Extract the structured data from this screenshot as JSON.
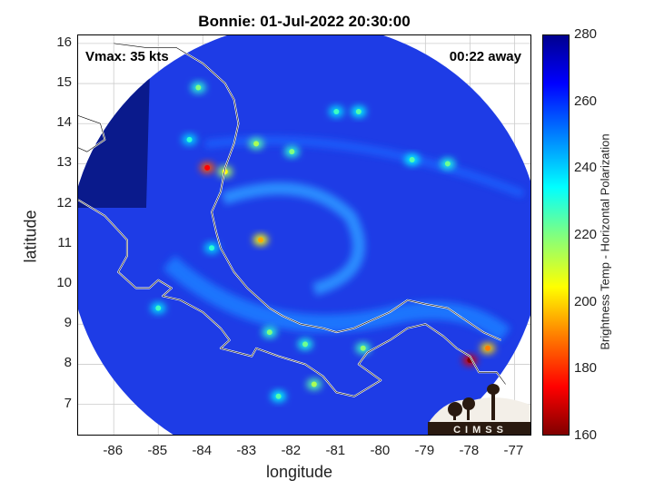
{
  "title": "Bonnie: 01-Jul-2022 20:30:00",
  "vmax_text": "Vmax: 35 kts",
  "away_text": "00:22 away",
  "logo_text": "CIMSS",
  "xlabel": "longitude",
  "ylabel": "latitude",
  "colorbar_label": "Brightness Temp - Horizontal Polarization",
  "colors": {
    "background_disk": "#1e3ce6",
    "dark_outer": "#0a1a8c",
    "coastline": "#ffffff",
    "grid": "#cccccc"
  },
  "map_data": {
    "type": "heatmap",
    "xlim": [
      -86.8,
      -76.6
    ],
    "ylim": [
      6.2,
      16.2
    ],
    "x_ticks": [
      -86,
      -85,
      -84,
      -83,
      -82,
      -81,
      -80,
      -79,
      -78,
      -77
    ],
    "y_ticks": [
      7,
      8,
      9,
      10,
      11,
      12,
      13,
      14,
      15,
      16
    ],
    "x_tick_labels": [
      "-86",
      "-85",
      "-84",
      "-83",
      "-82",
      "-81",
      "-80",
      "-79",
      "-78",
      "-77"
    ],
    "y_tick_labels": [
      "7",
      "8",
      "9",
      "10",
      "11",
      "12",
      "13",
      "14",
      "15",
      "16"
    ],
    "colorbar": {
      "range": [
        160,
        280
      ],
      "ticks": [
        160,
        180,
        200,
        220,
        240,
        260,
        280
      ],
      "tick_labels": [
        "160",
        "180",
        "200",
        "220",
        "240",
        "260",
        "280"
      ],
      "colormap": "jet"
    },
    "swath_center": [
      -81.7,
      10.9
    ],
    "swath_radius_deg": 5.3,
    "storm_center": [
      -82.7,
      11.1
    ],
    "hotspots": [
      {
        "lon": -83.9,
        "lat": 12.9,
        "tb": 185
      },
      {
        "lon": -82.7,
        "lat": 11.1,
        "tb": 205
      },
      {
        "lon": -78.0,
        "lat": 8.1,
        "tb": 170
      },
      {
        "lon": -84.1,
        "lat": 14.9,
        "tb": 230
      },
      {
        "lon": -80.5,
        "lat": 14.3,
        "tb": 235
      },
      {
        "lon": -82.8,
        "lat": 13.5,
        "tb": 225
      },
      {
        "lon": -83.5,
        "lat": 12.8,
        "tb": 215
      },
      {
        "lon": -82.0,
        "lat": 13.3,
        "tb": 230
      },
      {
        "lon": -81.0,
        "lat": 14.3,
        "tb": 238
      },
      {
        "lon": -79.3,
        "lat": 13.1,
        "tb": 235
      },
      {
        "lon": -78.5,
        "lat": 13.0,
        "tb": 232
      },
      {
        "lon": -82.5,
        "lat": 8.8,
        "tb": 230
      },
      {
        "lon": -81.7,
        "lat": 8.5,
        "tb": 232
      },
      {
        "lon": -80.4,
        "lat": 8.4,
        "tb": 228
      },
      {
        "lon": -81.5,
        "lat": 7.5,
        "tb": 225
      },
      {
        "lon": -82.3,
        "lat": 7.2,
        "tb": 235
      },
      {
        "lon": -77.6,
        "lat": 8.4,
        "tb": 200
      },
      {
        "lon": -84.3,
        "lat": 13.6,
        "tb": 240
      },
      {
        "lon": -85.0,
        "lat": 9.4,
        "tb": 238
      },
      {
        "lon": -83.8,
        "lat": 10.9,
        "tb": 240
      }
    ]
  }
}
